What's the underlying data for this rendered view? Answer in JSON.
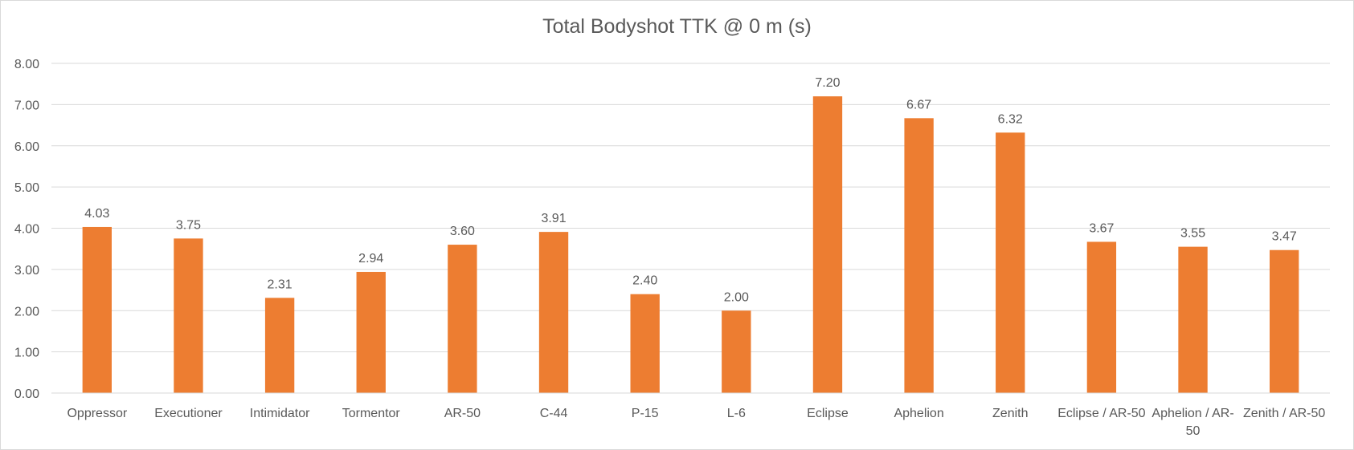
{
  "chart_data": {
    "type": "bar",
    "title": "Total Bodyshot TTK @ 0 m (s)",
    "xlabel": "",
    "ylabel": "",
    "ylim": [
      0,
      8
    ],
    "yticks": [
      "0.00",
      "1.00",
      "2.00",
      "3.00",
      "4.00",
      "5.00",
      "6.00",
      "7.00",
      "8.00"
    ],
    "grid": true,
    "legend": "none",
    "bar_color": "#ED7D31",
    "categories": [
      [
        "Oppressor"
      ],
      [
        "Executioner"
      ],
      [
        "Intimidator"
      ],
      [
        "Tormentor"
      ],
      [
        "AR-50"
      ],
      [
        "C-44"
      ],
      [
        "P-15"
      ],
      [
        "L-6"
      ],
      [
        "Eclipse"
      ],
      [
        "Aphelion"
      ],
      [
        "Zenith"
      ],
      [
        "Eclipse / AR-50"
      ],
      [
        "Aphelion / AR-",
        "50"
      ],
      [
        "Zenith / AR-50"
      ]
    ],
    "values": [
      4.03,
      3.75,
      2.31,
      2.94,
      3.6,
      3.91,
      2.4,
      2.0,
      7.2,
      6.67,
      6.32,
      3.67,
      3.55,
      3.47
    ],
    "data_labels": [
      "4.03",
      "3.75",
      "2.31",
      "2.94",
      "3.60",
      "3.91",
      "2.40",
      "2.00",
      "7.20",
      "6.67",
      "6.32",
      "3.67",
      "3.55",
      "3.47"
    ]
  }
}
